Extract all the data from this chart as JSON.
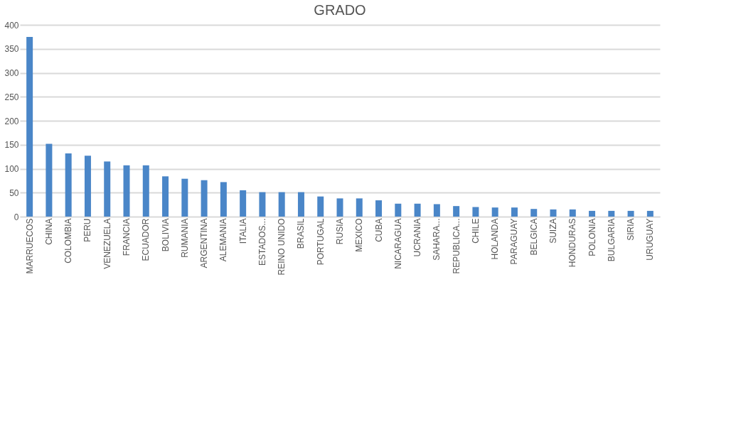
{
  "chart_data": {
    "type": "bar",
    "title": "GRADO",
    "categories": [
      "MARRUECOS",
      "CHINA",
      "COLOMBIA",
      "PERU",
      "VENEZUELA",
      "FRANCIA",
      "ECUADOR",
      "BOLIVIA",
      "RUMANIA",
      "ARGENTINA",
      "ALEMANIA",
      "ITALIA",
      "ESTADOS...",
      "REINO UNIDO",
      "BRASIL",
      "PORTUGAL",
      "RUSIA",
      "MEXICO",
      "CUBA",
      "NICARAGUA",
      "UCRANIA",
      "SAHARA...",
      "REPUBLICA...",
      "CHILE",
      "HOLANDA",
      "PARAGUAY",
      "BELGICA",
      "SUIZA",
      "HONDURAS",
      "POLONIA",
      "BULGARIA",
      "SIRIA",
      "URUGUAY"
    ],
    "values": [
      375,
      152,
      132,
      127,
      115,
      107,
      107,
      84,
      79,
      76,
      72,
      55,
      51,
      51,
      51,
      42,
      38,
      38,
      34,
      27,
      27,
      26,
      22,
      20,
      19,
      19,
      16,
      15,
      15,
      12,
      12,
      12,
      12
    ],
    "color": "#4a86c8",
    "ylim": [
      0,
      400
    ],
    "yticks": [
      0,
      50,
      100,
      150,
      200,
      250,
      300,
      350,
      400
    ],
    "grid": "y"
  }
}
